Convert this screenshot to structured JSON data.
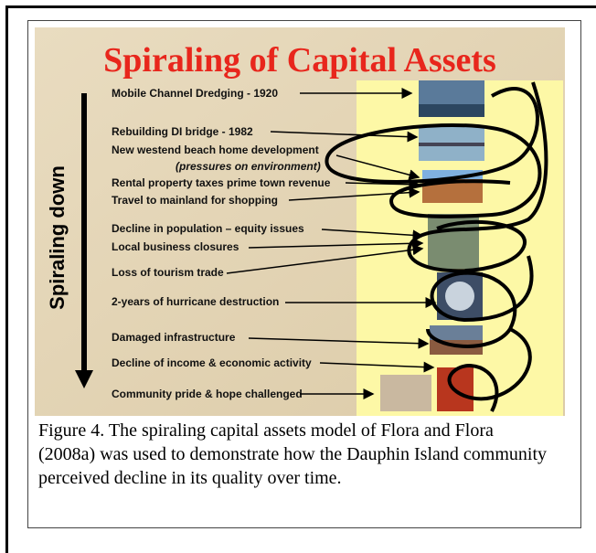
{
  "slide": {
    "title": "Spiraling of Capital Assets",
    "side_label": "Spiraling down",
    "items": [
      "Mobile Channel Dredging - 1920",
      "Rebuilding DI bridge - 1982",
      "New westend beach home development",
      "(pressures on environment)",
      "Rental property taxes prime town revenue",
      "Travel to mainland for shopping",
      "Decline in population – equity issues",
      "Local business closures",
      "Loss of tourism trade",
      "2-years of hurricane destruction",
      "Damaged infrastructure",
      "Decline of income & economic activity",
      "Community pride & hope challenged"
    ]
  },
  "caption": "Figure 4.  The spiraling capital assets model of Flora and Flora (2008a) was used to demonstrate how the Dauphin Island community perceived decline in its quality over time."
}
